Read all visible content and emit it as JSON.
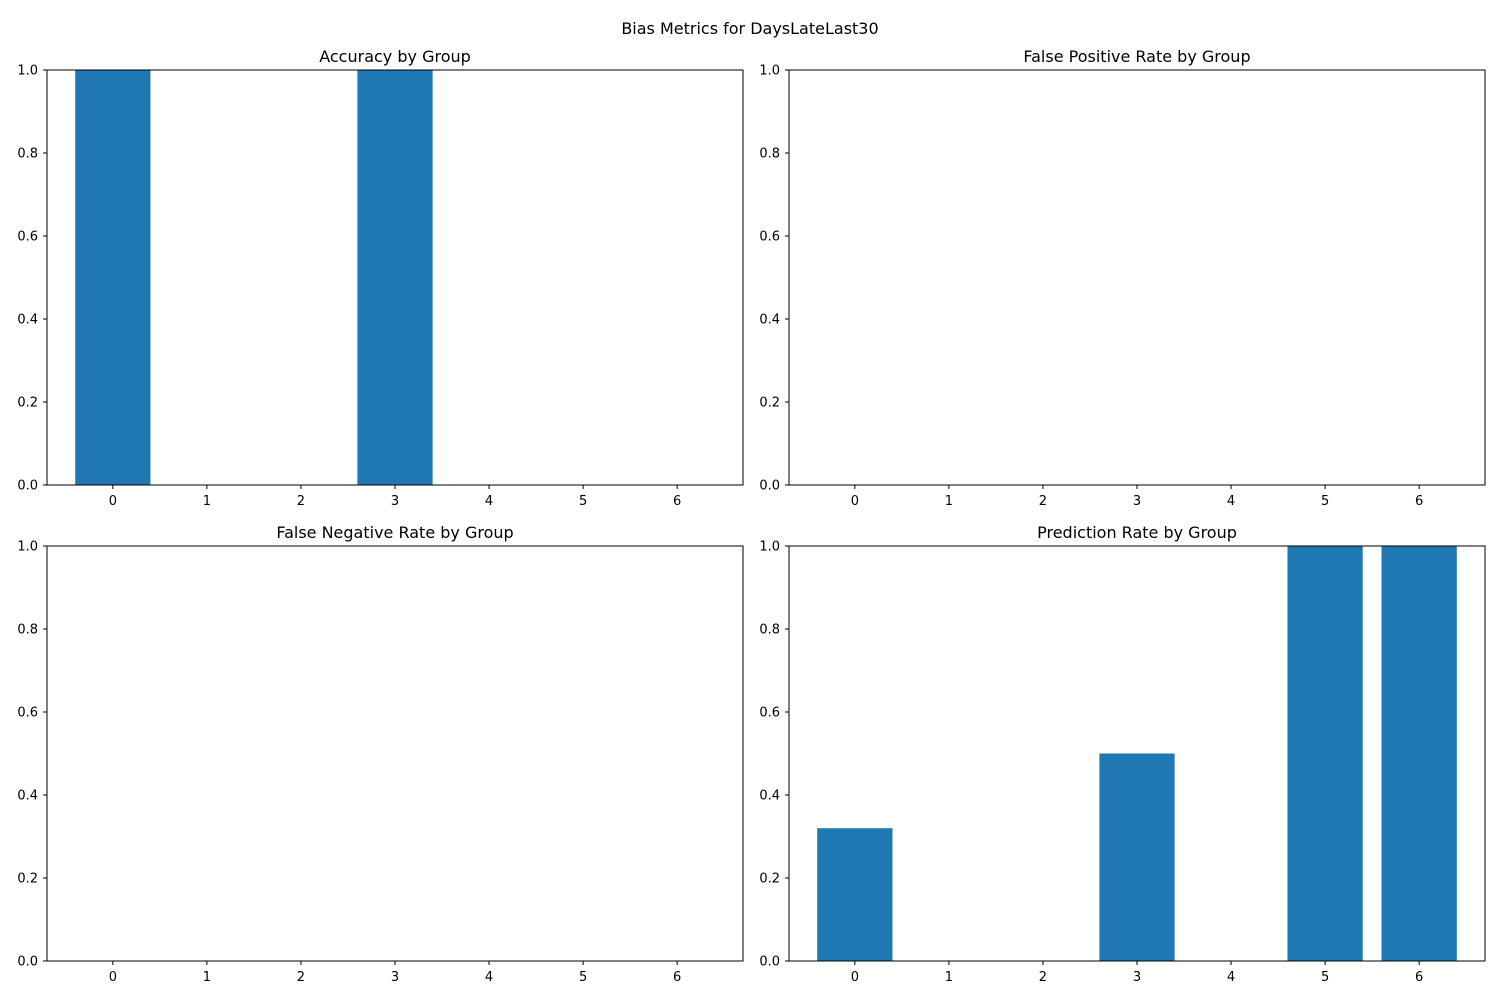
{
  "figure": {
    "suptitle": "Bias Metrics for DaysLateLast30",
    "bar_color": "#1f77b4"
  },
  "chart_data": [
    {
      "type": "bar",
      "title": "Accuracy by Group",
      "xlabel": "",
      "ylabel": "",
      "categories": [
        "0",
        "1",
        "2",
        "3",
        "4",
        "5",
        "6"
      ],
      "values": [
        1.0,
        0,
        0,
        1.0,
        0,
        0,
        0
      ],
      "ylim": [
        0,
        1
      ],
      "yticks": [
        "0.0",
        "0.2",
        "0.4",
        "0.6",
        "0.8",
        "1.0"
      ],
      "grid": false,
      "legend": "none"
    },
    {
      "type": "bar",
      "title": "False Positive Rate by Group",
      "xlabel": "",
      "ylabel": "",
      "categories": [
        "0",
        "1",
        "2",
        "3",
        "4",
        "5",
        "6"
      ],
      "values": [
        0,
        0,
        0,
        0,
        0,
        0,
        0
      ],
      "ylim": [
        0,
        1
      ],
      "yticks": [
        "0.0",
        "0.2",
        "0.4",
        "0.6",
        "0.8",
        "1.0"
      ],
      "grid": false,
      "legend": "none"
    },
    {
      "type": "bar",
      "title": "False Negative Rate by Group",
      "xlabel": "",
      "ylabel": "",
      "categories": [
        "0",
        "1",
        "2",
        "3",
        "4",
        "5",
        "6"
      ],
      "values": [
        0,
        0,
        0,
        0,
        0,
        0,
        0
      ],
      "ylim": [
        0,
        1
      ],
      "yticks": [
        "0.0",
        "0.2",
        "0.4",
        "0.6",
        "0.8",
        "1.0"
      ],
      "grid": false,
      "legend": "none"
    },
    {
      "type": "bar",
      "title": "Prediction Rate by Group",
      "xlabel": "",
      "ylabel": "",
      "categories": [
        "0",
        "1",
        "2",
        "3",
        "4",
        "5",
        "6"
      ],
      "values": [
        0.32,
        0,
        0,
        0.5,
        0,
        1.0,
        1.0
      ],
      "ylim": [
        0,
        1
      ],
      "yticks": [
        "0.0",
        "0.2",
        "0.4",
        "0.6",
        "0.8",
        "1.0"
      ],
      "grid": false,
      "legend": "none"
    }
  ]
}
